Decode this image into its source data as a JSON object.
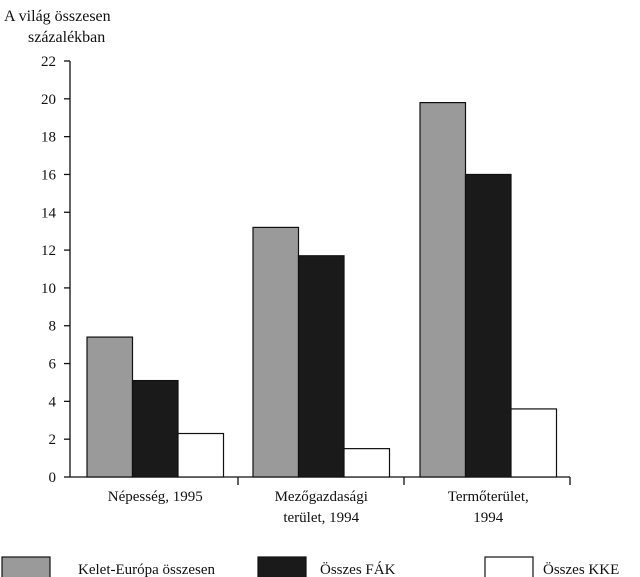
{
  "chart_data": {
    "type": "bar",
    "ylabel_lines": [
      "A világ összesen",
      "százalékban"
    ],
    "ylim": [
      0,
      22
    ],
    "yticks": [
      0,
      2,
      4,
      6,
      8,
      10,
      12,
      14,
      16,
      18,
      20,
      22
    ],
    "categories": [
      [
        "Népesség, 1995"
      ],
      [
        "Mezőgazdasági",
        "terület, 1994"
      ],
      [
        "Termőterület,",
        "1994"
      ]
    ],
    "series": [
      {
        "name": "Kelet-Európa összesen",
        "color": "#9a9a9a",
        "values": [
          7.4,
          13.2,
          19.8
        ]
      },
      {
        "name": "Összes FÁK",
        "color": "#1a1a1a",
        "values": [
          5.1,
          11.7,
          16.0
        ]
      },
      {
        "name": "Összes KKE",
        "color": "#ffffff",
        "values": [
          2.3,
          1.5,
          3.6
        ]
      }
    ],
    "grid": false,
    "legend": "bottom"
  }
}
